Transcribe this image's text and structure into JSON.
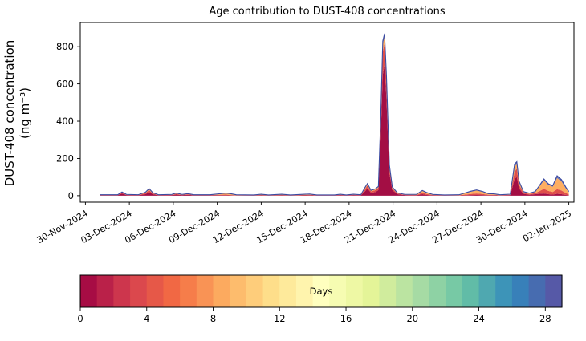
{
  "title": "Age contribution to DUST-408 concentrations",
  "y_axis": {
    "label_line1": "DUST-408 concentration",
    "label_line2": "(ng m⁻³)"
  },
  "chart_data": {
    "type": "area",
    "stacked": true,
    "title": "Age contribution to DUST-408 concentrations",
    "ylabel": "DUST-408 concentration (ng m⁻³)",
    "xlabel": "",
    "ylim": [
      -35,
      930
    ],
    "y_ticks": [
      0,
      200,
      400,
      600,
      800
    ],
    "x_tick_days": [
      0,
      3,
      6,
      9,
      12,
      15,
      18,
      21,
      24,
      27,
      30,
      33
    ],
    "x_tick_labels": [
      "30-Nov-2024",
      "03-Dec-2024",
      "06-Dec-2024",
      "09-Dec-2024",
      "12-Dec-2024",
      "15-Dec-2024",
      "18-Dec-2024",
      "21-Dec-2024",
      "24-Dec-2024",
      "27-Dec-2024",
      "30-Dec-2024",
      "02-Jan-2025"
    ],
    "x_days": [
      1.0,
      2.2,
      2.5,
      2.8,
      3.6,
      4.1,
      4.35,
      4.6,
      5.0,
      5.9,
      6.2,
      6.6,
      7.0,
      7.4,
      8.5,
      9.6,
      9.9,
      10.3,
      11.5,
      12.0,
      12.5,
      13.4,
      14.0,
      15.3,
      15.8,
      17.0,
      17.4,
      17.8,
      18.3,
      18.8,
      19.1,
      19.25,
      19.5,
      19.8,
      20.0,
      20.15,
      20.3,
      20.42,
      20.55,
      20.75,
      20.95,
      21.3,
      21.8,
      22.6,
      23.0,
      23.3,
      23.7,
      24.5,
      25.5,
      26.3,
      26.7,
      27.1,
      27.5,
      27.9,
      28.3,
      29.0,
      29.3,
      29.45,
      29.6,
      29.9,
      30.3,
      30.7,
      31.0,
      31.3,
      31.6,
      31.9,
      32.2,
      32.5,
      32.8,
      33.0
    ],
    "series": [
      {
        "name": "age 0-4 days",
        "color": "#a30e44",
        "values": [
          2,
          2,
          12,
          3,
          2,
          8,
          20,
          8,
          2,
          3,
          6,
          3,
          5,
          2,
          2,
          2,
          1,
          1,
          1,
          2,
          1,
          2,
          1,
          2,
          1,
          1,
          3,
          1,
          3,
          2,
          25,
          40,
          15,
          20,
          30,
          300,
          650,
          700,
          520,
          120,
          30,
          8,
          3,
          2,
          8,
          4,
          2,
          1,
          1,
          3,
          4,
          3,
          2,
          2,
          1,
          3,
          90,
          100,
          40,
          10,
          5,
          8,
          10,
          12,
          8,
          6,
          10,
          8,
          4,
          2
        ]
      },
      {
        "name": "age 4-8 days",
        "color": "#df4f4a",
        "values": [
          1,
          1,
          4,
          2,
          1,
          6,
          10,
          4,
          1,
          2,
          4,
          2,
          3,
          1,
          1,
          4,
          3,
          1,
          1,
          2,
          1,
          2,
          1,
          3,
          1,
          1,
          2,
          1,
          2,
          1,
          12,
          15,
          8,
          10,
          12,
          60,
          120,
          118,
          90,
          30,
          10,
          4,
          2,
          2,
          8,
          5,
          2,
          1,
          1,
          6,
          8,
          6,
          3,
          3,
          1,
          2,
          40,
          45,
          20,
          6,
          4,
          6,
          15,
          25,
          18,
          14,
          25,
          20,
          10,
          5
        ]
      },
      {
        "name": "age 8-16 days",
        "color": "#fdae61",
        "values": [
          1,
          1,
          2,
          1,
          1,
          3,
          5,
          2,
          1,
          1,
          2,
          1,
          2,
          1,
          1,
          6,
          5,
          2,
          1,
          3,
          1,
          3,
          1,
          3,
          1,
          1,
          2,
          1,
          2,
          1,
          6,
          7,
          4,
          5,
          5,
          20,
          40,
          37,
          25,
          10,
          5,
          2,
          1,
          2,
          10,
          6,
          2,
          1,
          2,
          12,
          16,
          12,
          5,
          4,
          2,
          2,
          25,
          25,
          12,
          4,
          3,
          6,
          25,
          45,
          32,
          28,
          60,
          48,
          25,
          12
        ]
      },
      {
        "name": "age 16-29 days",
        "color": "#6472b4",
        "values": [
          1,
          1,
          2,
          1,
          1,
          2,
          3,
          2,
          1,
          1,
          2,
          1,
          1,
          1,
          1,
          2,
          2,
          1,
          1,
          1,
          1,
          1,
          1,
          1,
          1,
          1,
          1,
          1,
          1,
          1,
          3,
          3,
          2,
          2,
          3,
          10,
          20,
          15,
          10,
          5,
          2,
          1,
          1,
          1,
          2,
          2,
          1,
          1,
          1,
          3,
          3,
          2,
          1,
          1,
          1,
          1,
          15,
          12,
          6,
          2,
          2,
          2,
          5,
          8,
          6,
          5,
          12,
          10,
          6,
          4
        ]
      }
    ],
    "outline_color": "#3b4aa1",
    "colorbar": {
      "label": "Days",
      "ticks": [
        0,
        4,
        8,
        12,
        16,
        20,
        24,
        28
      ],
      "vmin": 0,
      "vmax": 29,
      "segments": 29,
      "stops": [
        "#9e0142",
        "#d53e4f",
        "#f46d43",
        "#fdae61",
        "#fee08b",
        "#ffffbf",
        "#e6f598",
        "#abdda4",
        "#66c2a5",
        "#3288bd",
        "#5e4fa2"
      ]
    }
  }
}
